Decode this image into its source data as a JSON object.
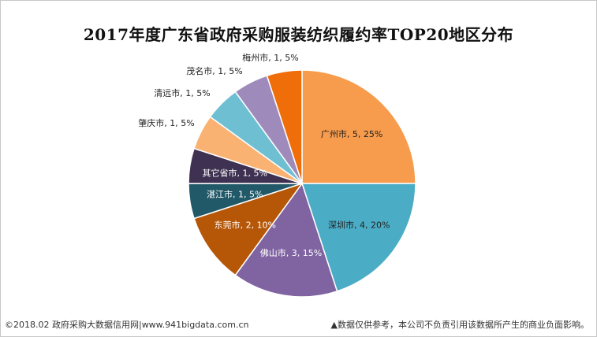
{
  "chart_data": {
    "type": "pie",
    "title": "2017年度广东省政府采购服装纺织履约率TOP20地区分布",
    "slices": [
      {
        "name": "广州市",
        "value": 5,
        "percent": "25%",
        "label": "广州市, 5, 25%",
        "color": "#F79B4C",
        "label_color": "#222222"
      },
      {
        "name": "深圳市",
        "value": 4,
        "percent": "20%",
        "label": "深圳市, 4, 20%",
        "color": "#4BACC6",
        "label_color": "#222222"
      },
      {
        "name": "佛山市",
        "value": 3,
        "percent": "15%",
        "label": "佛山市, 3, 15%",
        "color": "#8064A2",
        "label_color": "#ffffff"
      },
      {
        "name": "东莞市",
        "value": 2,
        "percent": "10%",
        "label": "东莞市, 2, 10%",
        "color": "#B65708",
        "label_color": "#ffffff"
      },
      {
        "name": "湛江市",
        "value": 1,
        "percent": "5%",
        "label": "湛江市, 1, 5%",
        "color": "#215968",
        "label_color": "#ffffff"
      },
      {
        "name": "其它省市",
        "value": 1,
        "percent": "5%",
        "label": "其它省市, 1, 5%",
        "color": "#3F3151",
        "label_color": "#ffffff"
      },
      {
        "name": "肇庆市",
        "value": 1,
        "percent": "5%",
        "label": "肇庆市, 1, 5%",
        "color": "#FAB273",
        "label_color": "#222222"
      },
      {
        "name": "清远市",
        "value": 1,
        "percent": "5%",
        "label": "清远市, 1, 5%",
        "color": "#6FBFD3",
        "label_color": "#222222"
      },
      {
        "name": "茂名市",
        "value": 1,
        "percent": "5%",
        "label": "茂名市, 1, 5%",
        "color": "#9F8BBB",
        "label_color": "#222222"
      },
      {
        "name": "梅州市",
        "value": 1,
        "percent": "5%",
        "label": "梅州市, 1, 5%",
        "color": "#F06E0A",
        "label_color": "#222222"
      }
    ]
  },
  "footer": {
    "left": "©2018.02 政府采购大数据信用网|www.941bigdata.com.cn",
    "right": "▲数据仅供参考，本公司不负责引用该数据所产生的商业负面影响。"
  }
}
